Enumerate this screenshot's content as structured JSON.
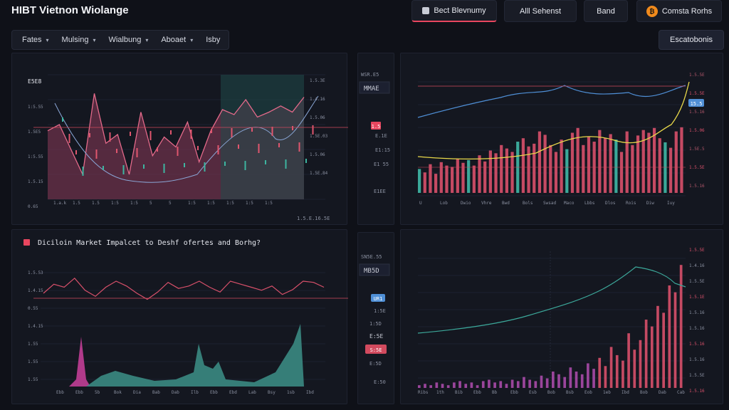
{
  "app": {
    "title": "HIBT Vietnon Wiolange"
  },
  "top_buttons": [
    {
      "label": "Bect Blevnumy"
    },
    {
      "label": "Alll Sehenst"
    },
    {
      "label": "Band"
    },
    {
      "label": "Comsta Rorhs"
    }
  ],
  "menu": [
    {
      "label": "Fates",
      "has_caret": true
    },
    {
      "label": "Mulsing",
      "has_caret": true
    },
    {
      "label": "Wialbung",
      "has_caret": true
    },
    {
      "label": "Aboaet",
      "has_caret": true
    },
    {
      "label": "Isby",
      "has_caret": false
    }
  ],
  "right_button": {
    "label": "Escatobonis"
  },
  "panel_top_left": {
    "y_labels": [
      "E5E8",
      "1:5.55",
      "1.5E5",
      "1:5.55",
      "1.5.15",
      "0.65"
    ],
    "x_labels": [
      "1.a.k",
      "1.5",
      "1.5",
      "1:5",
      "1:5",
      "5",
      "5",
      "1:5",
      "1:5",
      "1:5",
      "1:5",
      "1:5"
    ],
    "right_labels": [
      "1.5.3E",
      "1.4.16",
      "1.5.06",
      "1.5E.03",
      "1.5.06",
      "1.5E.84"
    ],
    "footer_label": "1.5.E.16.5E",
    "price_tag": "1.5"
  },
  "mid_top_tags": {
    "top": "WSR.E5",
    "box": "MMAE",
    "l1": "E.1E",
    "l2": "E1:15",
    "l3": "E1 55",
    "l4": "E1EE"
  },
  "panel_top_right": {
    "right_labels": [
      "1.5.5E",
      "1.5.5E",
      "1.5.16",
      "1.5.06",
      "1.5E.5",
      "1.5.5E",
      "1.5.16"
    ],
    "x_labels": [
      "U",
      "Lob",
      "Dwio",
      "Vhre",
      "Bwd",
      "Bols",
      "Swsad",
      "Maco",
      "Lbbs",
      "Dlos",
      "Rois",
      "Diw",
      "Iuy"
    ],
    "highlight_tag": "15.5"
  },
  "panel_bottom_left": {
    "title": "Diciloin Market Impalcet to Deshf ofertes and Borhg?",
    "y_labels": [
      "1.5.53",
      "1.4.15",
      "0.55",
      "1.4.15",
      "1.55",
      "1.55",
      "1.55"
    ],
    "x_labels": [
      "Ebb",
      "Ebb",
      "5b",
      "Bok",
      "Dia",
      "Bab",
      "Dab",
      "Ilb",
      "Ebb",
      "Ebd",
      "Lab",
      "Bsy",
      "1sb",
      "Ibd"
    ],
    "price_tag": "UR1"
  },
  "mid_bottom_tags": {
    "top": "SN5E.55",
    "box": "MB5D",
    "l1": "1:5E",
    "l2": "1:5D",
    "l3": "E:5E",
    "l4": "S:5E",
    "l5": "E:5D",
    "l6": "E:50"
  },
  "panel_bottom_right": {
    "right_labels": [
      "1.5.5E",
      "1.4.16",
      "1.5.5E",
      "1.5.1E",
      "1.5.16",
      "1.5.16",
      "1.5.16",
      "1.5.16",
      "1.5.5E",
      "1.5.16"
    ],
    "x_labels": [
      "Ribs",
      "1th",
      "Bib",
      "Ebb",
      "Bb",
      "Ebb",
      "Esb",
      "Bob",
      "Bsb",
      "Eob",
      "1eb",
      "Ibd",
      "Bob",
      "Dab",
      "Cab"
    ]
  },
  "chart_data": [
    {
      "type": "line",
      "title": "",
      "series": [
        {
          "values": [
            55,
            60,
            40,
            20,
            85,
            45,
            52,
            20,
            70,
            35,
            50,
            42,
            62,
            30,
            55,
            72,
            68,
            80,
            66,
            70,
            75,
            70,
            82
          ]
        }
      ]
    },
    {
      "type": "bar",
      "title": "",
      "series": [
        {
          "values": [
            35,
            30,
            42,
            28,
            45,
            40,
            38,
            50,
            44,
            48,
            40,
            55,
            46,
            62,
            58,
            70,
            65,
            60,
            75,
            80,
            68,
            72,
            90,
            85,
            70,
            60,
            78,
            64,
            88,
            95,
            70,
            82,
            75,
            92,
            80,
            86,
            78,
            60,
            90,
            70,
            84,
            92,
            88,
            95,
            80,
            74,
            66,
            90,
            96
          ]
        }
      ]
    },
    {
      "type": "line",
      "title": "",
      "series": [
        {
          "values": [
            60,
            75,
            70,
            85,
            65,
            55,
            70,
            80,
            72,
            60,
            50,
            62,
            78,
            68,
            72,
            80,
            70,
            62,
            80,
            75,
            70,
            65,
            72,
            58,
            66,
            80,
            78,
            70
          ]
        }
      ]
    },
    {
      "type": "bar",
      "title": "",
      "series": [
        {
          "values": [
            2,
            3,
            2,
            4,
            3,
            2,
            4,
            5,
            3,
            4,
            2,
            5,
            6,
            4,
            5,
            3,
            6,
            5,
            8,
            6,
            5,
            9,
            7,
            12,
            10,
            8,
            15,
            12,
            10,
            18,
            14,
            22,
            16,
            30,
            24,
            20,
            40,
            28,
            35,
            50,
            45,
            60,
            55,
            75,
            70,
            90
          ]
        }
      ]
    }
  ]
}
